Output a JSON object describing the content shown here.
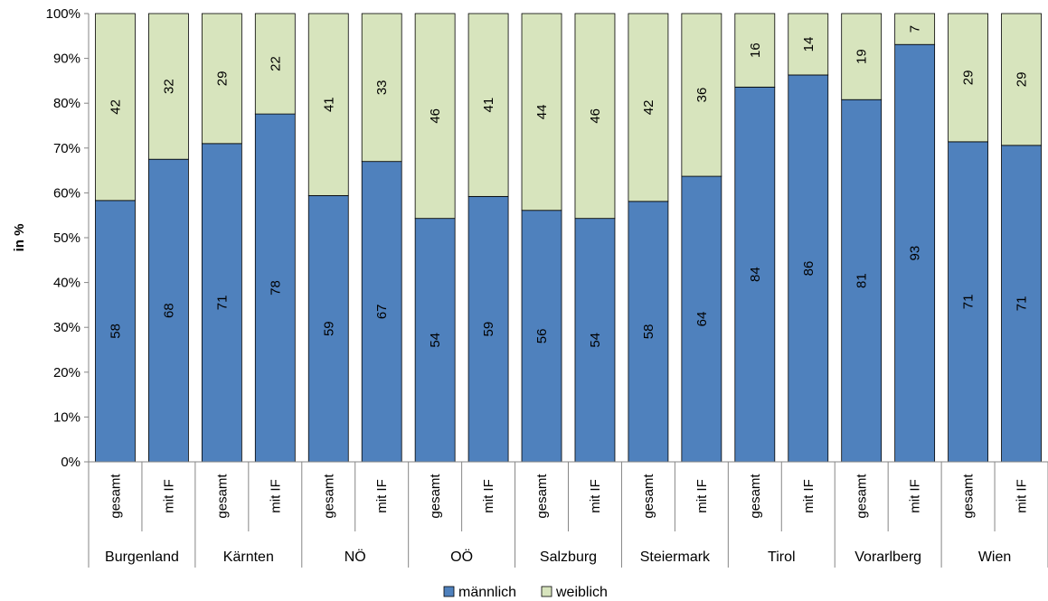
{
  "chart_data": {
    "type": "bar",
    "stacked": true,
    "ylabel": "in %",
    "ylim": [
      0,
      100
    ],
    "y_ticks": [
      "0%",
      "10%",
      "20%",
      "30%",
      "40%",
      "50%",
      "60%",
      "70%",
      "80%",
      "90%",
      "100%"
    ],
    "grid": false,
    "legend_position": "bottom",
    "groups": [
      {
        "name": "Burgenland",
        "categories": [
          "gesamt",
          "mit IF"
        ]
      },
      {
        "name": "Kärnten",
        "categories": [
          "gesamt",
          "mit IF"
        ]
      },
      {
        "name": "NÖ",
        "categories": [
          "gesamt",
          "mit IF"
        ]
      },
      {
        "name": "OÖ",
        "categories": [
          "gesamt",
          "mit IF"
        ]
      },
      {
        "name": "Salzburg",
        "categories": [
          "gesamt",
          "mit IF"
        ]
      },
      {
        "name": "Steiermark",
        "categories": [
          "gesamt",
          "mit IF"
        ]
      },
      {
        "name": "Tirol",
        "categories": [
          "gesamt",
          "mit IF"
        ]
      },
      {
        "name": "Vorarlberg",
        "categories": [
          "gesamt",
          "mit IF"
        ]
      },
      {
        "name": "Wien",
        "categories": [
          "gesamt",
          "mit IF"
        ]
      }
    ],
    "series": [
      {
        "name": "männlich",
        "color": "#4F81BD",
        "values": [
          58,
          68,
          71,
          78,
          59,
          67,
          54,
          59,
          56,
          54,
          58,
          64,
          84,
          86,
          81,
          93,
          71,
          71
        ],
        "heights": [
          58.3,
          67.5,
          71.0,
          77.6,
          59.4,
          67.0,
          54.3,
          59.2,
          56.1,
          54.3,
          58.1,
          63.7,
          83.6,
          86.3,
          80.8,
          93.1,
          71.4,
          70.6
        ]
      },
      {
        "name": "weiblich",
        "color": "#D7E4BD",
        "values": [
          42,
          32,
          29,
          22,
          41,
          33,
          46,
          41,
          44,
          46,
          42,
          36,
          16,
          14,
          19,
          7,
          29,
          29
        ]
      }
    ]
  }
}
